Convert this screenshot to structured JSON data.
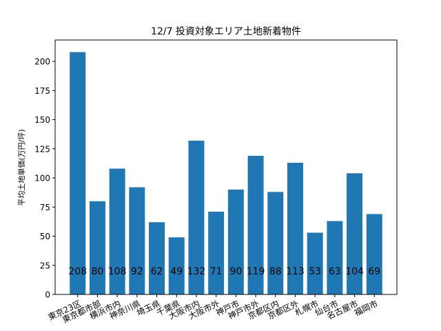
{
  "chart_data": {
    "type": "bar",
    "title": "12/7 投資対象エリア土地新着物件",
    "xlabel": "",
    "ylabel": "平均土地単価(万円/坪)",
    "categories": [
      "東京23区",
      "東京都市部",
      "横浜市内",
      "神奈川県",
      "埼玉県",
      "千葉県",
      "大阪市内",
      "大阪市外",
      "神戸市",
      "神戸市外",
      "京都区内",
      "京都区外",
      "札幌市",
      "仙台市",
      "名古屋市",
      "福岡市"
    ],
    "values": [
      208,
      80,
      108,
      92,
      62,
      49,
      132,
      71,
      90,
      119,
      88,
      113,
      53,
      63,
      104,
      69
    ],
    "data_labels": [
      "208",
      "80",
      "108",
      "92",
      "62",
      "49",
      "132",
      "71",
      "90",
      "119",
      "88",
      "113",
      "53",
      "63",
      "104",
      "69"
    ],
    "data_label_value": 20,
    "ylim": [
      0,
      218.4
    ],
    "yticks": [
      0,
      25,
      50,
      75,
      100,
      125,
      150,
      175,
      200
    ],
    "ytick_labels": [
      "0",
      "25",
      "50",
      "75",
      "100",
      "125",
      "150",
      "175",
      "200"
    ],
    "bar_color": "#1f77b4",
    "grid": false,
    "legend": "none"
  }
}
